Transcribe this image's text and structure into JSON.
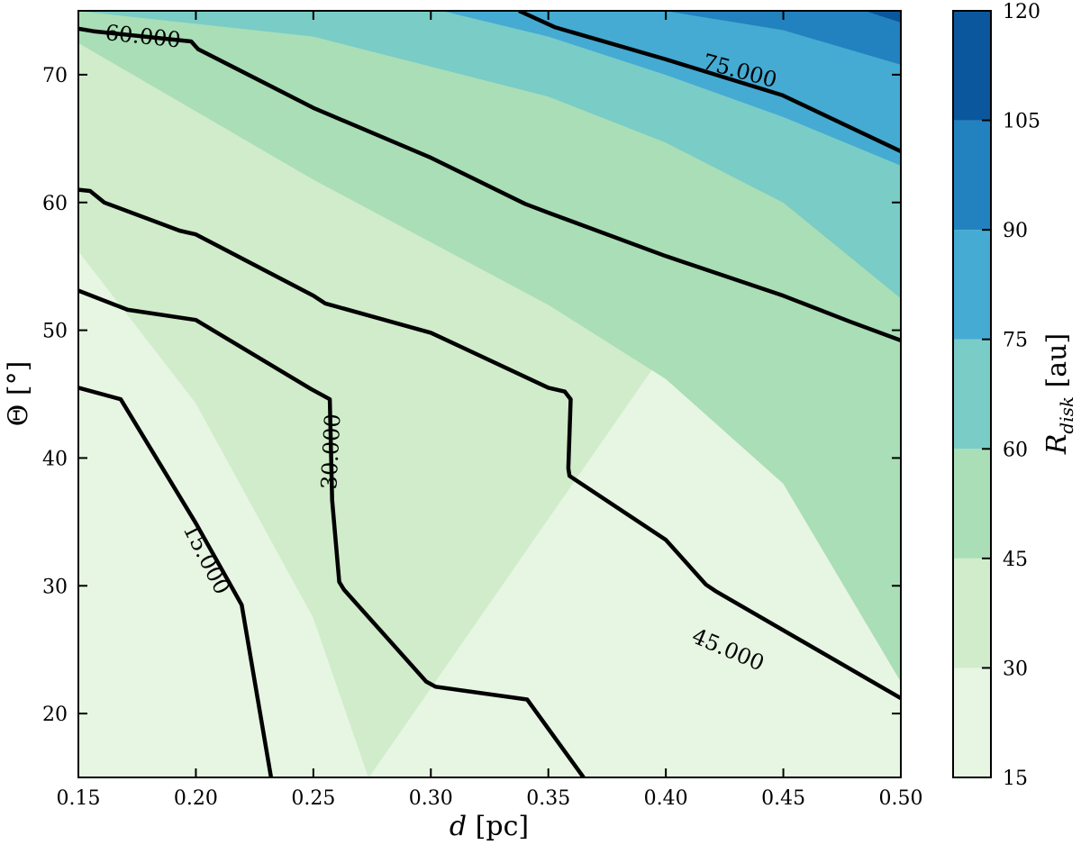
{
  "chart_data": {
    "type": "contour",
    "x_axis": {
      "label_var": "d",
      "label_unit": " [pc]",
      "range": [
        0.15,
        0.5
      ],
      "ticks": [
        0.15,
        0.2,
        0.25,
        0.3,
        0.35,
        0.4,
        0.45,
        0.5
      ],
      "tick_labels": [
        "0.15",
        "0.20",
        "0.25",
        "0.30",
        "0.35",
        "0.40",
        "0.45",
        "0.50"
      ]
    },
    "y_axis": {
      "label_var": "Θ",
      "label_unit": " [°]",
      "range": [
        15,
        75
      ],
      "ticks": [
        20,
        30,
        40,
        50,
        60,
        70
      ],
      "tick_labels": [
        "20",
        "30",
        "40",
        "50",
        "60",
        "70"
      ]
    },
    "colorbar": {
      "label_main": "R",
      "label_sub": "disk",
      "label_unit": " [au]",
      "levels": [
        15,
        30,
        45,
        60,
        75,
        90,
        105,
        120
      ],
      "tick_labels": [
        "15",
        "30",
        "45",
        "60",
        "75",
        "90",
        "105",
        "120"
      ],
      "colors": [
        "#e7f5e3",
        "#d0ecca",
        "#aadeb6",
        "#7accc6",
        "#45abd3",
        "#2282bf",
        "#0b579d"
      ]
    },
    "filled_boundaries": [
      {
        "level": 30,
        "points": [
          [
            0.15,
            56.2
          ],
          [
            0.2,
            44.3
          ],
          [
            0.25,
            27.5
          ],
          [
            0.2735,
            15
          ]
        ]
      },
      {
        "level": 45,
        "points": [
          [
            0.15,
            72.5
          ],
          [
            0.25,
            61.8
          ],
          [
            0.35,
            52.0
          ],
          [
            0.4,
            46.2
          ],
          [
            0.45,
            38.0
          ],
          [
            0.5,
            22.5
          ]
        ]
      },
      {
        "level": 60,
        "points": [
          [
            0.15,
            75.0
          ],
          [
            0.25,
            73.0
          ],
          [
            0.35,
            68.3
          ],
          [
            0.4,
            64.7
          ],
          [
            0.45,
            60.0
          ],
          [
            0.5,
            52.5
          ]
        ]
      },
      {
        "level": 75,
        "points": [
          [
            0.305,
            75
          ],
          [
            0.35,
            73.0
          ],
          [
            0.4,
            70.0
          ],
          [
            0.45,
            66.7
          ],
          [
            0.5,
            62.9
          ]
        ]
      },
      {
        "level": 90,
        "points": [
          [
            0.4,
            75
          ],
          [
            0.45,
            73.5
          ],
          [
            0.5,
            70.8
          ]
        ]
      },
      {
        "level": 105,
        "points": [
          [
            0.485,
            75
          ],
          [
            0.5,
            74.1
          ]
        ]
      }
    ],
    "contour_lines": [
      {
        "level": 15,
        "label": "15.000",
        "label_at": [
          0.2045,
          32.1
        ],
        "label_angle": 63,
        "points": [
          [
            0.15,
            45.5
          ],
          [
            0.168,
            44.6
          ],
          [
            0.2,
            34.9
          ],
          [
            0.2195,
            28.5
          ],
          [
            0.232,
            15
          ]
        ]
      },
      {
        "level": 30,
        "label": "30.000",
        "label_at": [
          0.2575,
          40.5
        ],
        "label_angle": -87,
        "points": [
          [
            0.15,
            53.1
          ],
          [
            0.171,
            51.6
          ],
          [
            0.2,
            50.8
          ],
          [
            0.249,
            45.4
          ],
          [
            0.257,
            44.6
          ],
          [
            0.258,
            36.7
          ],
          [
            0.261,
            30.3
          ],
          [
            0.263,
            29.7
          ],
          [
            0.298,
            22.5
          ],
          [
            0.302,
            22.1
          ],
          [
            0.341,
            21.1
          ],
          [
            0.365,
            15
          ]
        ]
      },
      {
        "level": 45,
        "label": "45.000",
        "label_at": [
          0.4265,
          25.0
        ],
        "label_angle": 23,
        "points": [
          [
            0.15,
            61.0
          ],
          [
            0.155,
            60.9
          ],
          [
            0.161,
            60.0
          ],
          [
            0.193,
            57.8
          ],
          [
            0.2,
            57.5
          ],
          [
            0.25,
            52.7
          ],
          [
            0.255,
            52.1
          ],
          [
            0.3,
            49.8
          ],
          [
            0.35,
            45.5
          ],
          [
            0.357,
            45.2
          ],
          [
            0.3595,
            44.6
          ],
          [
            0.3585,
            39.2
          ],
          [
            0.359,
            38.6
          ],
          [
            0.4,
            33.6
          ],
          [
            0.417,
            30.1
          ],
          [
            0.421,
            29.6
          ],
          [
            0.5,
            21.2
          ]
        ]
      },
      {
        "level": 60,
        "label": "60.000",
        "label_at": [
          0.1775,
          73.0
        ],
        "label_angle": 6,
        "points": [
          [
            0.15,
            73.6
          ],
          [
            0.1565,
            73.4
          ],
          [
            0.198,
            72.6
          ],
          [
            0.201,
            72.0
          ],
          [
            0.25,
            67.4
          ],
          [
            0.3,
            63.5
          ],
          [
            0.34,
            59.9
          ],
          [
            0.35,
            59.2
          ],
          [
            0.4,
            55.8
          ],
          [
            0.45,
            52.7
          ],
          [
            0.478,
            50.7
          ],
          [
            0.5,
            49.2
          ]
        ]
      },
      {
        "level": 75,
        "label": "75.000",
        "label_at": [
          0.4315,
          70.3
        ],
        "label_angle": 15,
        "points": [
          [
            0.3375,
            75
          ],
          [
            0.353,
            73.7
          ],
          [
            0.4,
            71.2
          ],
          [
            0.4495,
            68.4
          ],
          [
            0.5,
            64.0
          ]
        ]
      }
    ]
  }
}
